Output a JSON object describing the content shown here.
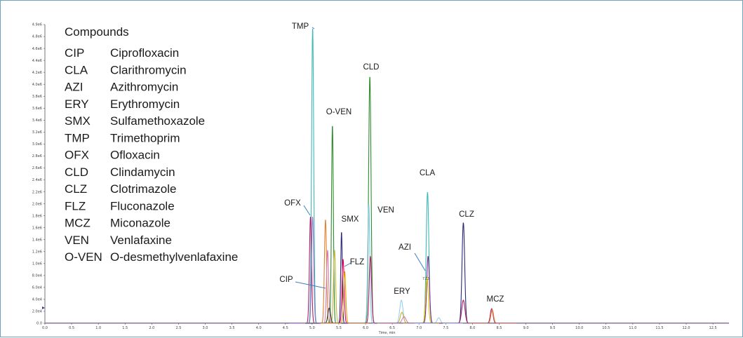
{
  "chart_data": {
    "type": "line",
    "title": "",
    "xlabel": "Time, min",
    "ylabel": "",
    "xlim": [
      0.0,
      12.8
    ],
    "ylim": [
      0,
      4900000
    ],
    "x_ticks": [
      "0.0",
      "0.5",
      "1.0",
      "1.5",
      "2.0",
      "2.5",
      "3.0",
      "3.5",
      "4.0",
      "4.5",
      "5.0",
      "5.5",
      "6.0",
      "6.5",
      "7.0",
      "7.5",
      "8.0",
      "8.5",
      "9.0",
      "9.5",
      "10.0",
      "10.5",
      "11.0",
      "11.5",
      "12.0",
      "12.5"
    ],
    "y_ticks": [
      "0.0",
      "2.0e4",
      "4.0e4",
      "6.0e4",
      "8.0e4",
      "1.0e6",
      "1.2e6",
      "1.4e6",
      "1.6e6",
      "1.8e6",
      "2.0e6",
      "2.2e6",
      "2.4e6",
      "2.6e6",
      "2.8e6",
      "3.0e6",
      "3.2e6",
      "3.4e6",
      "3.6e6",
      "3.8e6",
      "4.0e6",
      "4.2e6",
      "4.4e6",
      "4.6e6",
      "4.8e6",
      "4.9e6"
    ],
    "legend": {
      "title": "Compounds",
      "items": [
        {
          "abbr": "CIP",
          "name": "Ciprofloxacin"
        },
        {
          "abbr": "CLA",
          "name": "Clarithromycin"
        },
        {
          "abbr": "AZI",
          "name": "Azithromycin"
        },
        {
          "abbr": "ERY",
          "name": "Erythromycin"
        },
        {
          "abbr": "SMX",
          "name": "Sulfamethoxazole"
        },
        {
          "abbr": "TMP",
          "name": "Trimethoprim"
        },
        {
          "abbr": "OFX",
          "name": "Ofloxacin"
        },
        {
          "abbr": "CLD",
          "name": "Clindamycin"
        },
        {
          "abbr": "CLZ",
          "name": "Clotrimazole"
        },
        {
          "abbr": "FLZ",
          "name": "Fluconazole"
        },
        {
          "abbr": "MCZ",
          "name": "Miconazole"
        },
        {
          "abbr": "VEN",
          "name": "Venlafaxine"
        },
        {
          "abbr": "O-VEN",
          "name": "O-desmethylvenlafaxine"
        }
      ]
    },
    "peaks": [
      {
        "rt": 5.01,
        "height": 4850000,
        "width": 0.04,
        "color": "#3fb8b8"
      },
      {
        "rt": 5.38,
        "height": 3250000,
        "width": 0.035,
        "color": "#2e8b2e"
      },
      {
        "rt": 5.42,
        "height": 1200000,
        "width": 0.04,
        "color": "#c0b83a"
      },
      {
        "rt": 6.08,
        "height": 4050000,
        "width": 0.045,
        "color": "#2e8b2e"
      },
      {
        "rt": 6.06,
        "height": 1950000,
        "width": 0.04,
        "color": "#7ec8e3"
      },
      {
        "rt": 6.09,
        "height": 1100000,
        "width": 0.045,
        "color": "#b0206a"
      },
      {
        "rt": 7.16,
        "height": 2150000,
        "width": 0.05,
        "color": "#3fb8b8"
      },
      {
        "rt": 7.17,
        "height": 1100000,
        "width": 0.05,
        "color": "#7a2a8a"
      },
      {
        "rt": 7.15,
        "height": 750000,
        "width": 0.05,
        "color": "#e6c000"
      },
      {
        "rt": 7.83,
        "height": 1650000,
        "width": 0.05,
        "color": "#2a2a7a"
      },
      {
        "rt": 7.83,
        "height": 380000,
        "width": 0.06,
        "color": "#b0206a"
      },
      {
        "rt": 8.36,
        "height": 240000,
        "width": 0.05,
        "color": "#b0206a"
      },
      {
        "rt": 8.37,
        "height": 220000,
        "width": 0.05,
        "color": "#e08030"
      },
      {
        "rt": 4.97,
        "height": 1750000,
        "width": 0.04,
        "color": "#b0206a"
      },
      {
        "rt": 5.01,
        "height": 1750000,
        "width": 0.04,
        "color": "#9a7ac8"
      },
      {
        "rt": 5.25,
        "height": 1700000,
        "width": 0.04,
        "color": "#e08030"
      },
      {
        "rt": 5.29,
        "height": 1200000,
        "width": 0.04,
        "color": "#d87ab0"
      },
      {
        "rt": 5.32,
        "height": 250000,
        "width": 0.05,
        "color": "#1f3f3f"
      },
      {
        "rt": 5.55,
        "height": 1500000,
        "width": 0.03,
        "color": "#2a2a7a"
      },
      {
        "rt": 5.58,
        "height": 1050000,
        "width": 0.04,
        "color": "#e60060"
      },
      {
        "rt": 5.61,
        "height": 850000,
        "width": 0.04,
        "color": "#e6a000"
      },
      {
        "rt": 6.67,
        "height": 380000,
        "width": 0.06,
        "color": "#9ad0f0"
      },
      {
        "rt": 6.68,
        "height": 180000,
        "width": 0.06,
        "color": "#c0b83a"
      },
      {
        "rt": 6.72,
        "height": 110000,
        "width": 0.07,
        "color": "#d87ab0"
      },
      {
        "rt": 7.37,
        "height": 90000,
        "width": 0.06,
        "color": "#9ad0f0"
      }
    ],
    "annotations": [
      {
        "label": "TMP",
        "rt": 5.01
      },
      {
        "label": "CLD",
        "rt": 6.08
      },
      {
        "label": "O-VEN",
        "rt": 5.38
      },
      {
        "label": "CLA",
        "rt": 7.16
      },
      {
        "label": "CLZ",
        "rt": 7.83
      },
      {
        "label": "OFX",
        "rt": 4.97
      },
      {
        "label": "SMX",
        "rt": 5.55
      },
      {
        "label": "VEN",
        "rt": 6.06
      },
      {
        "label": "AZI",
        "rt": 7.17
      },
      {
        "label": "FLZ",
        "rt": 5.61
      },
      {
        "label": "CIP",
        "rt": 5.32
      },
      {
        "label": "ERY",
        "rt": 6.67
      },
      {
        "label": "MCZ",
        "rt": 8.36
      }
    ],
    "peak_label": "7.13",
    "grid": false
  }
}
